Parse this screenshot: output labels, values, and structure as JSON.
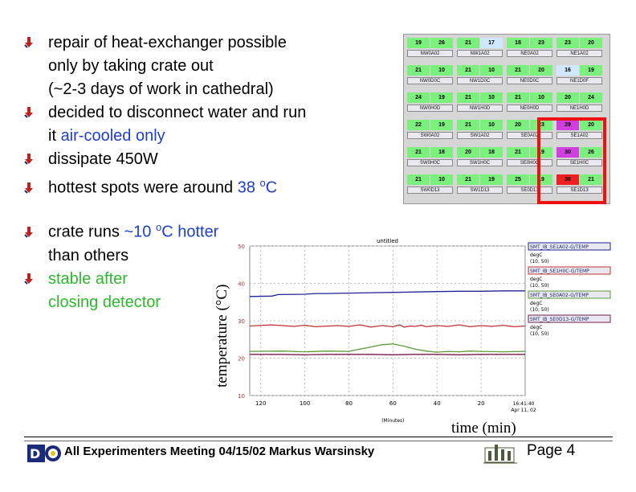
{
  "bullets_top": [
    {
      "parts": [
        {
          "t": "repair of heat-exchanger possible",
          "c": ""
        }
      ],
      "bullet": true
    },
    {
      "parts": [
        {
          "t": "only by taking crate out",
          "c": ""
        }
      ],
      "bullet": false
    },
    {
      "parts": [
        {
          "t": "(~2-3 days of work in cathedral)",
          "c": ""
        }
      ],
      "bullet": false
    },
    {
      "parts": [
        {
          "t": "decided to disconnect water and run",
          "c": ""
        }
      ],
      "bullet": true
    },
    {
      "parts": [
        {
          "t": "it ",
          "c": ""
        },
        {
          "t": "air-cooled only",
          "c": "blue"
        }
      ],
      "bullet": false
    },
    {
      "parts": [
        {
          "t": "dissipate 450W",
          "c": ""
        }
      ],
      "bullet": true
    },
    {
      "parts": [
        {
          "t": "hottest spots were around ",
          "c": ""
        },
        {
          "t": "38 ",
          "c": "blue"
        },
        {
          "t": "o",
          "c": "sup"
        },
        {
          "t": "C",
          "c": "blue"
        }
      ],
      "bullet": true
    }
  ],
  "bullets_bottom": [
    {
      "parts": [
        {
          "t": "crate runs ",
          "c": ""
        },
        {
          "t": "~10 ",
          "c": "blue"
        },
        {
          "t": "o",
          "c": "sup"
        },
        {
          "t": "C hotter",
          "c": "blue"
        }
      ],
      "bullet": true
    },
    {
      "parts": [
        {
          "t": "than others",
          "c": ""
        }
      ],
      "bullet": false
    },
    {
      "parts": [
        {
          "t": "stable after",
          "c": "green"
        }
      ],
      "bullet": true
    },
    {
      "parts": [
        {
          "t": "closing detector",
          "c": "green"
        }
      ],
      "bullet": false
    }
  ],
  "crate_grid": [
    [
      {
        "a": "19",
        "b": "26",
        "label": "NW0A02",
        "c": "#7cf07c"
      },
      {
        "a": "21",
        "b": "17",
        "label": "NW1A02",
        "c": "#7cf07c",
        "bc": "#cfe8ff"
      },
      {
        "a": "18",
        "b": "23",
        "label": "NE0A02",
        "c": "#7cf07c"
      },
      {
        "a": "23",
        "b": "20",
        "label": "NE1A02",
        "c": "#7cf07c"
      }
    ],
    [
      {
        "a": "21",
        "b": "10",
        "label": "NW0D0C",
        "c": "#7cf07c"
      },
      {
        "a": "21",
        "b": "10",
        "label": "NW1D0C",
        "c": "#7cf07c"
      },
      {
        "a": "21",
        "b": "20",
        "label": "NE0D0C",
        "c": "#7cf07c"
      },
      {
        "a": "16",
        "b": "19",
        "label": "NE1D0F",
        "c": "#7cf07c",
        "ac": "#cfe8ff"
      }
    ],
    [
      {
        "a": "24",
        "b": "19",
        "label": "NW0H0D",
        "c": "#7cf07c"
      },
      {
        "a": "21",
        "b": "10",
        "label": "NW1H0D",
        "c": "#7cf07c"
      },
      {
        "a": "21",
        "b": "10",
        "label": "NE0H0D",
        "c": "#7cf07c"
      },
      {
        "a": "20",
        "b": "24",
        "label": "NE1H0D",
        "c": "#7cf07c"
      }
    ],
    [
      {
        "a": "22",
        "b": "19",
        "label": "SW0A02",
        "c": "#7cf07c"
      },
      {
        "a": "21",
        "b": "10",
        "label": "SW1A02",
        "c": "#7cf07c"
      },
      {
        "a": "20",
        "b": "23",
        "label": "SE0A02",
        "c": "#7cf07c"
      },
      {
        "a": "29",
        "b": "20",
        "label": "SE1A02",
        "c": "#7cf07c",
        "ac": "#d040e0"
      }
    ],
    [
      {
        "a": "21",
        "b": "18",
        "label": "SW0H0C",
        "c": "#7cf07c"
      },
      {
        "a": "20",
        "b": "18",
        "label": "SW1H0C",
        "c": "#7cf07c"
      },
      {
        "a": "21",
        "b": "19",
        "label": "SE0H0C",
        "c": "#7cf07c"
      },
      {
        "a": "30",
        "b": "26",
        "label": "SE1H0C",
        "c": "#7cf07c",
        "ac": "#d040e0"
      }
    ],
    [
      {
        "a": "21",
        "b": "10",
        "label": "SW0D13",
        "c": "#7cf07c"
      },
      {
        "a": "21",
        "b": "19",
        "label": "SW1D13",
        "c": "#7cf07c"
      },
      {
        "a": "25",
        "b": "19",
        "label": "SE0D13",
        "c": "#7cf07c"
      },
      {
        "a": "36",
        "b": "21",
        "label": "SE1D13",
        "c": "#7cf07c",
        "ac": "#ee2020"
      }
    ]
  ],
  "chart_data": {
    "type": "line",
    "title": "untitled",
    "xlabel": "time (min)",
    "ylabel": "temperature (°C)",
    "x_axis_caption": "(Minutes)",
    "x_tick_labels": [
      "120",
      "100",
      "80",
      "60",
      "40",
      "20"
    ],
    "end_time_label": "16:41:40",
    "end_date_label": "Apr 11, 02",
    "yticks": [
      50,
      40,
      30,
      20,
      10
    ],
    "ylim": [
      10,
      50
    ],
    "xlim": [
      125,
      0
    ],
    "grid": true,
    "legend_position": "right",
    "series": [
      {
        "name": "SMT_IB_SE1A02-G/TEMP",
        "unit": "degC",
        "range": "(10, 50)",
        "color": "#22229a",
        "x": [
          125,
          115,
          112,
          100,
          95,
          90,
          80,
          70,
          60,
          50,
          40,
          30,
          20,
          10,
          0
        ],
        "y": [
          36.5,
          36.6,
          37.0,
          37.1,
          37.3,
          37.3,
          37.4,
          37.5,
          37.6,
          37.7,
          37.8,
          37.9,
          37.9,
          38.0,
          38.0
        ]
      },
      {
        "name": "SMT_IB_SE1H0C-G/TEMP",
        "unit": "degC",
        "range": "(10, 50)",
        "color": "#c03030",
        "x": [
          125,
          115,
          105,
          100,
          95,
          85,
          80,
          75,
          70,
          65,
          60,
          57,
          55,
          52,
          50,
          47,
          45,
          40,
          35,
          30,
          25,
          20,
          15,
          10,
          5,
          0
        ],
        "y": [
          28.6,
          28.9,
          28.5,
          28.8,
          28.4,
          28.7,
          28.5,
          28.9,
          28.3,
          28.7,
          28.4,
          28.9,
          28.3,
          28.6,
          28.5,
          28.8,
          28.4,
          28.7,
          28.5,
          28.9,
          28.4,
          28.7,
          28.5,
          28.8,
          28.4,
          28.6
        ]
      },
      {
        "name": "SMT_IB_SE0A02-G/TEMP",
        "unit": "degC",
        "range": "(10, 50)",
        "color": "#5a9a3a",
        "x": [
          125,
          110,
          100,
          90,
          80,
          75,
          70,
          65,
          60,
          55,
          50,
          45,
          40,
          35,
          30,
          25,
          20,
          10,
          0
        ],
        "y": [
          21.8,
          21.9,
          21.7,
          21.9,
          21.8,
          22.4,
          23.0,
          23.6,
          23.8,
          23.2,
          22.4,
          21.9,
          21.6,
          21.8,
          21.7,
          21.9,
          21.8,
          21.7,
          21.8
        ]
      },
      {
        "name": "SMT_IB_SE0D13-G/TEMP",
        "unit": "degC",
        "range": "(10, 50)",
        "color": "#7a1a4a",
        "x": [
          125,
          110,
          100,
          90,
          80,
          70,
          60,
          50,
          40,
          30,
          20,
          10,
          0
        ],
        "y": [
          21.0,
          21.0,
          20.9,
          21.0,
          21.0,
          21.0,
          20.9,
          21.0,
          21.0,
          20.9,
          21.0,
          21.0,
          21.0
        ]
      }
    ]
  },
  "footer": {
    "text": "All Experimenters Meeting 04/15/02 Markus Warsinsky",
    "page": "Page 4",
    "logo_text": "D0"
  }
}
